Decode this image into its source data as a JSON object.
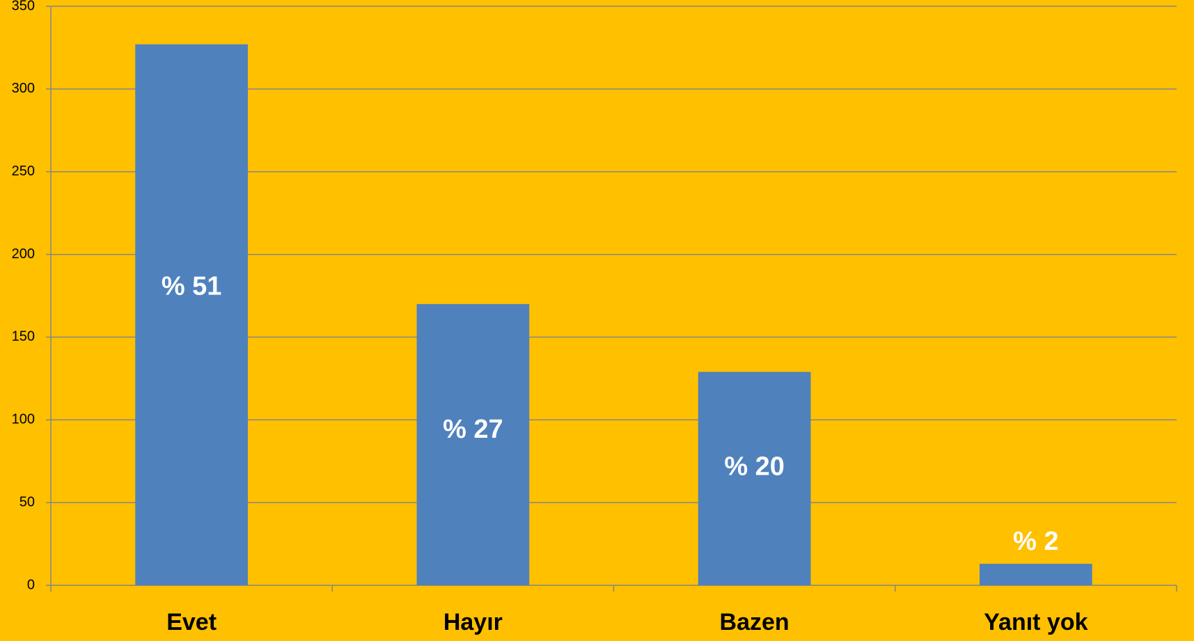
{
  "chart_data": {
    "type": "bar",
    "categories": [
      "Evet",
      "Hayır",
      "Bazen",
      "Yanıt yok"
    ],
    "values": [
      327,
      170,
      129,
      13
    ],
    "labels": [
      "% 51",
      "% 27",
      "% 20",
      "% 2"
    ],
    "color": "#4F81BD",
    "ylim": [
      0,
      350
    ],
    "yticks": [
      0,
      50,
      100,
      150,
      200,
      250,
      300,
      350
    ],
    "grid": true
  }
}
